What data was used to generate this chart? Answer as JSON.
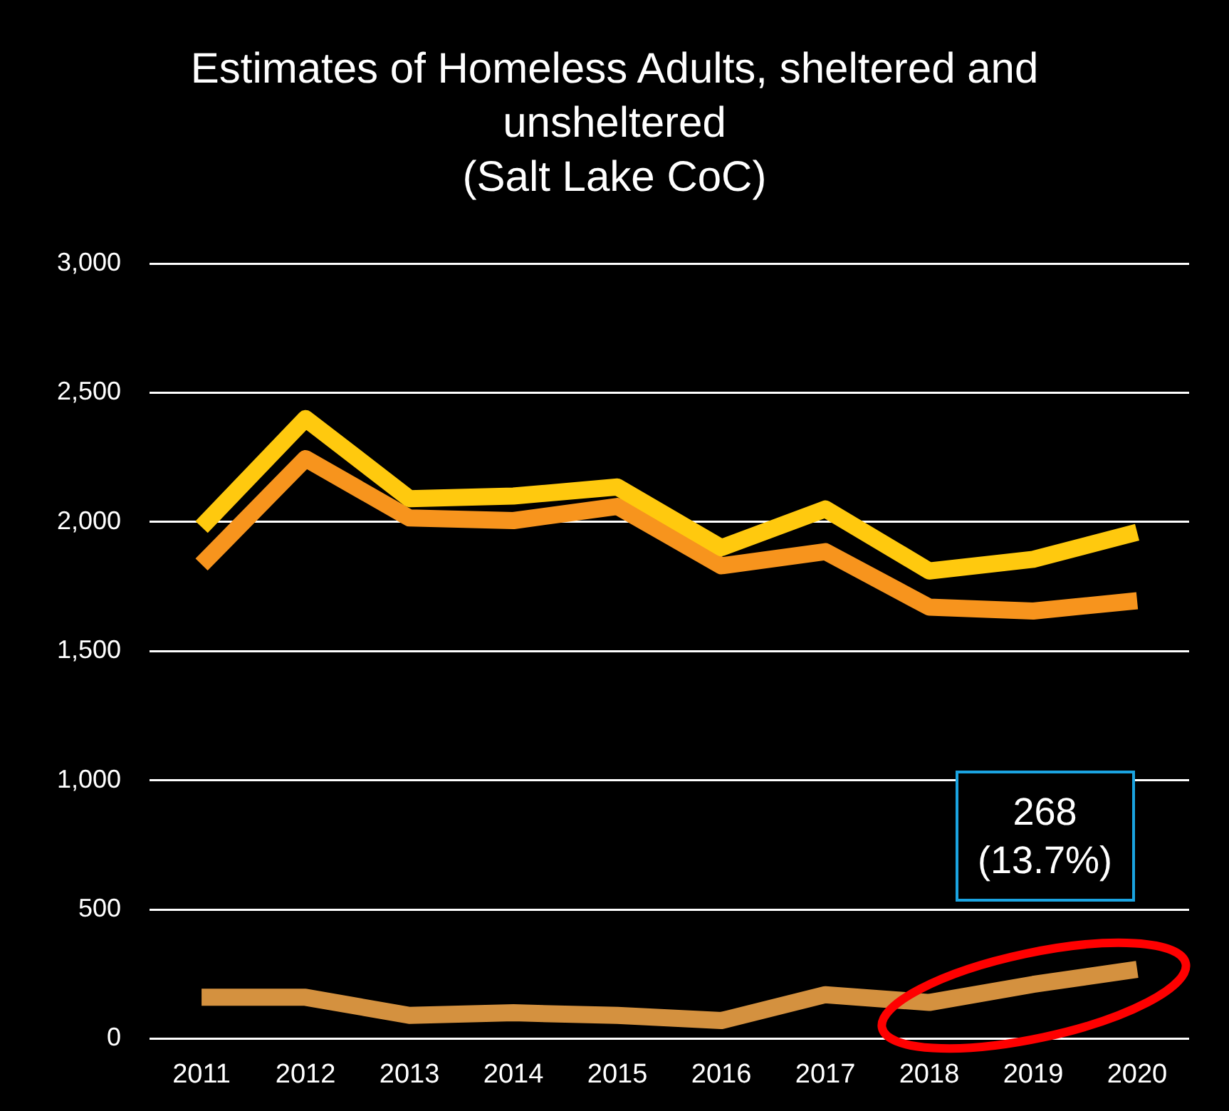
{
  "chart_data": {
    "type": "line",
    "title": "Estimates of Homeless Adults, sheltered and unsheltered",
    "subtitle": "(Salt Lake CoC)",
    "categories": [
      "2011",
      "2012",
      "2013",
      "2014",
      "2015",
      "2016",
      "2017",
      "2018",
      "2019",
      "2020"
    ],
    "series": [
      {
        "color": "#ffc90e",
        "values": [
          1980,
          2400,
          2090,
          2100,
          2135,
          1900,
          2050,
          1810,
          1855,
          1960
        ]
      },
      {
        "color": "#f7941d",
        "values": [
          1835,
          2245,
          2015,
          2005,
          2060,
          1830,
          1885,
          1670,
          1655,
          1695
        ]
      },
      {
        "color": "#d4913f",
        "values": [
          160,
          160,
          90,
          100,
          90,
          70,
          170,
          140,
          210,
          268
        ]
      }
    ],
    "ylim": [
      0,
      3000
    ],
    "yticks": [
      0,
      {
        "value": 500,
        "label": "500"
      },
      {
        "value": 1000,
        "label": "1,000"
      },
      {
        "value": 1500,
        "label": "1,500"
      },
      {
        "value": 2000,
        "label": "2,000"
      },
      {
        "value": 2500,
        "label": "2,500"
      },
      {
        "value": 3000,
        "label": "3,000"
      }
    ],
    "grid": "y",
    "legend": false,
    "marker": "none",
    "line_style": "solid",
    "annotations": [
      {
        "text": "268\n(13.7%)",
        "x": "2020",
        "y": 268
      }
    ]
  }
}
